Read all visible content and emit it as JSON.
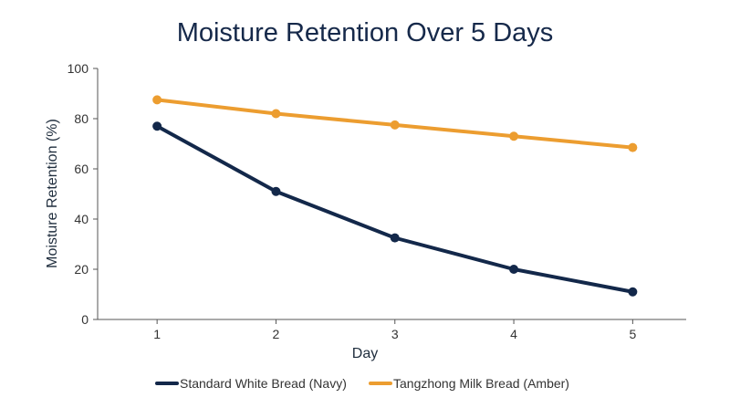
{
  "chart_data": {
    "type": "line",
    "title": "Moisture Retention Over 5 Days",
    "xlabel": "Day",
    "ylabel": "Moisture Retention (%)",
    "x": [
      1,
      2,
      3,
      4,
      5
    ],
    "x_ticks": [
      "1",
      "2",
      "3",
      "4",
      "5"
    ],
    "y_ticks": [
      "0",
      "20",
      "40",
      "60",
      "80",
      "100"
    ],
    "ylim": [
      0,
      100
    ],
    "xlim": [
      0.5,
      5.45
    ],
    "grid": false,
    "legend_position": "bottom-center",
    "series": [
      {
        "name": "Standard White Bread (Navy)",
        "color": "#13284a",
        "values": [
          77,
          51,
          32.5,
          20,
          11
        ]
      },
      {
        "name": "Tangzhong Milk Bread (Amber)",
        "color": "#ec9d30",
        "values": [
          87.5,
          82,
          77.5,
          73,
          68.5
        ]
      }
    ]
  }
}
